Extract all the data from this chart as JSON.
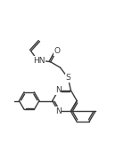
{
  "bg_color": "#ffffff",
  "line_color": "#3a3a3a",
  "line_width": 1.0,
  "text_color": "#3a3a3a",
  "font_size": 6.5,
  "figsize": [
    1.39,
    1.78
  ],
  "dpi": 100,
  "xlim": [
    0,
    14
  ],
  "ylim": [
    0,
    18
  ]
}
